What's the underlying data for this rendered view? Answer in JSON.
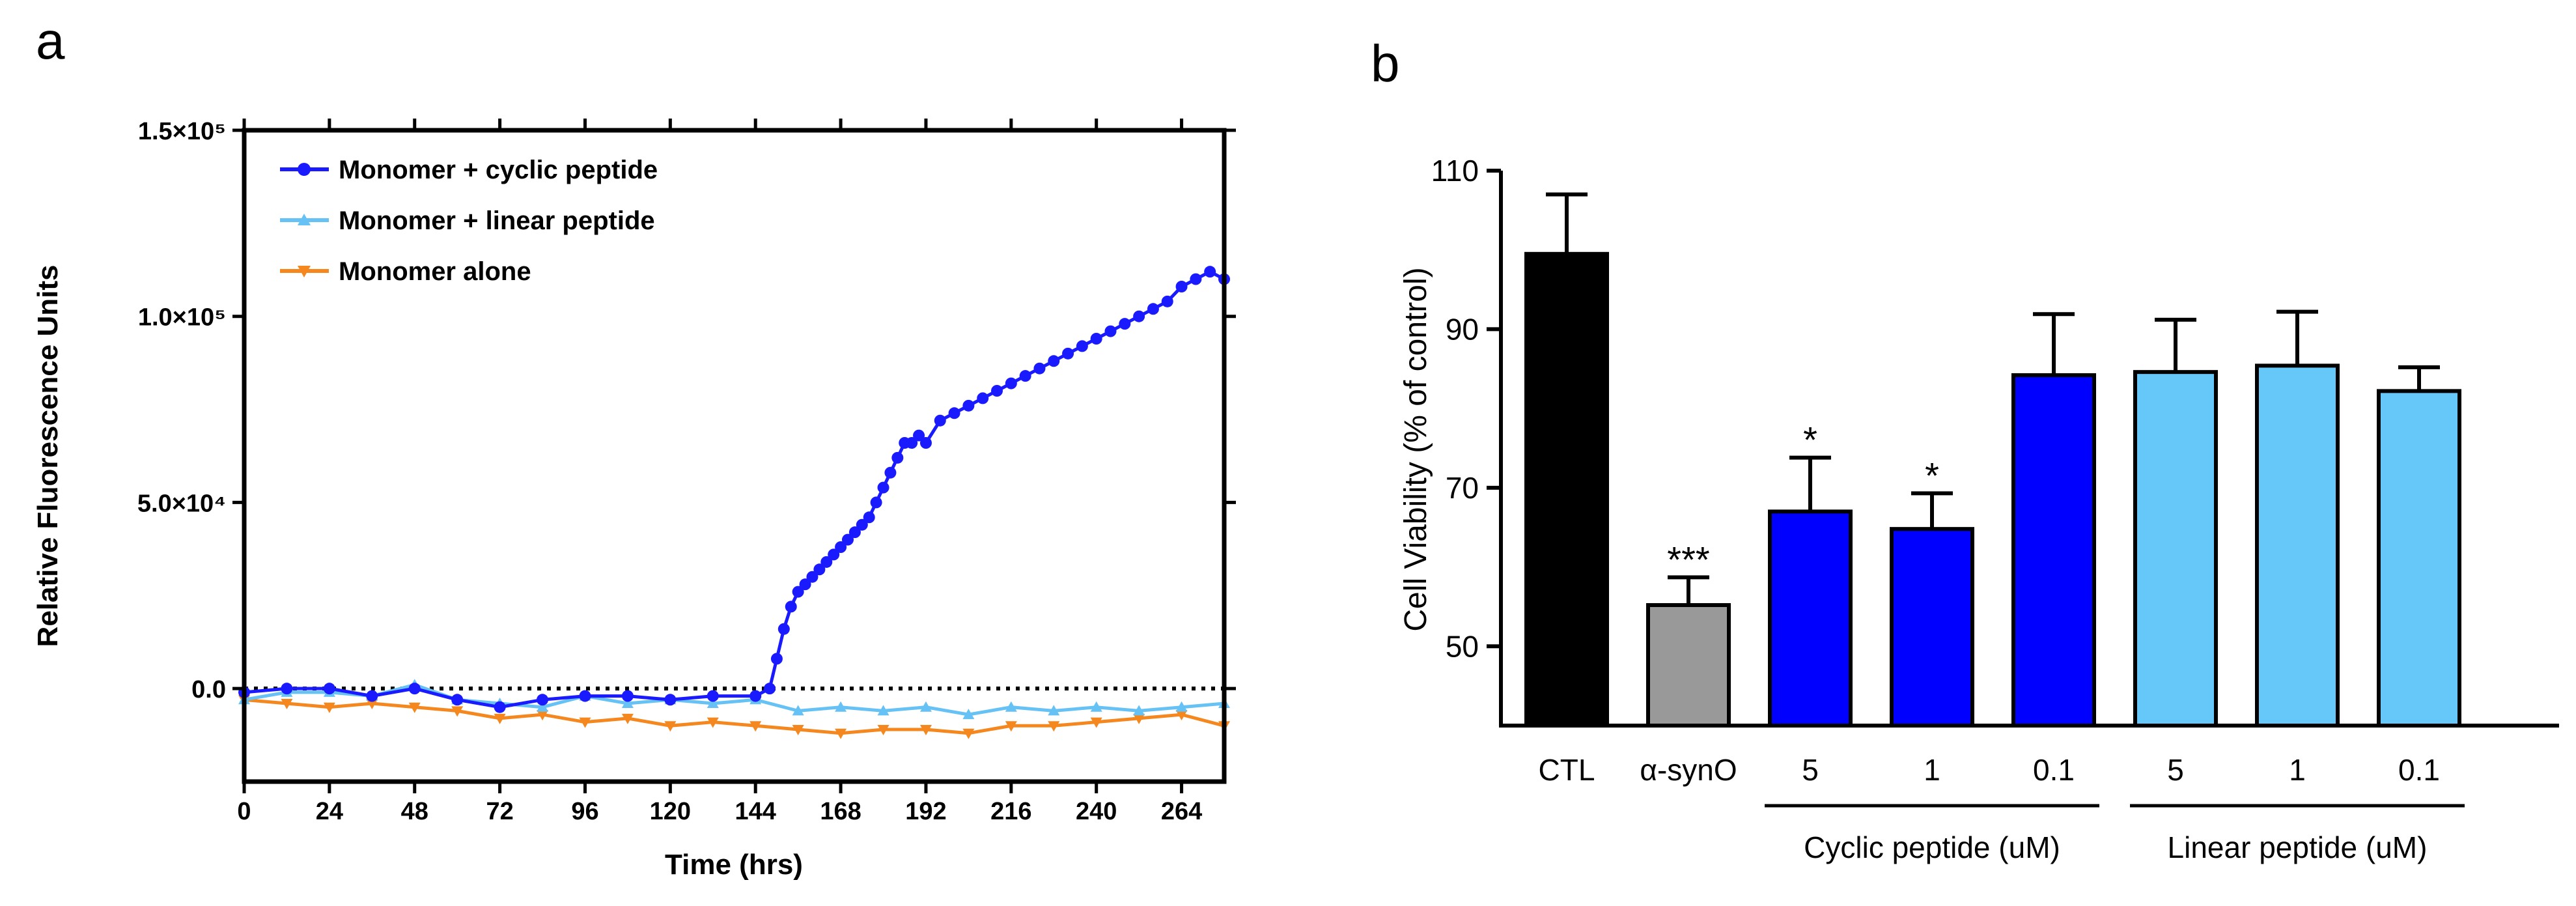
{
  "panels": {
    "a_label": "a",
    "b_label": "b"
  },
  "chart_data": [
    {
      "type": "line",
      "title": "",
      "xlabel": "Time (hrs)",
      "ylabel": "Relative Fluorescence Units",
      "xlim": [
        0,
        276
      ],
      "ylim": [
        -25000,
        150000
      ],
      "x_ticks": [
        0,
        24,
        48,
        72,
        96,
        120,
        144,
        168,
        192,
        216,
        240,
        264
      ],
      "x_tick_labels": [
        "0",
        "24",
        "48",
        "72",
        "96",
        "120",
        "144",
        "168",
        "192",
        "216",
        "240",
        "264"
      ],
      "y_ticks": [
        0,
        50000,
        100000,
        150000
      ],
      "y_tick_labels": [
        "0.0",
        "5.0×10⁴",
        "1.0×10⁵",
        "1.5×10⁵"
      ],
      "zero_line": "dotted",
      "legend_position": "top-left",
      "series": [
        {
          "name": "Monomer + cyclic peptide",
          "color": "#1a1aff",
          "marker": "circle",
          "x": [
            0,
            12,
            24,
            36,
            48,
            60,
            72,
            84,
            96,
            108,
            120,
            132,
            144,
            148,
            150,
            152,
            154,
            156,
            158,
            160,
            162,
            164,
            166,
            168,
            170,
            172,
            174,
            176,
            178,
            180,
            182,
            184,
            186,
            188,
            190,
            192,
            196,
            200,
            204,
            208,
            212,
            216,
            220,
            224,
            228,
            232,
            236,
            240,
            244,
            248,
            252,
            256,
            260,
            264,
            268,
            272,
            276
          ],
          "values": [
            -1000,
            0,
            0,
            -2000,
            0,
            -3000,
            -5000,
            -3000,
            -2000,
            -2000,
            -3000,
            -2000,
            -2000,
            0,
            8000,
            16000,
            22000,
            26000,
            28000,
            30000,
            32000,
            34000,
            36000,
            38000,
            40000,
            42000,
            44000,
            46000,
            50000,
            54000,
            58000,
            62000,
            66000,
            66000,
            68000,
            66000,
            72000,
            74000,
            76000,
            78000,
            80000,
            82000,
            84000,
            86000,
            88000,
            90000,
            92000,
            94000,
            96000,
            98000,
            100000,
            102000,
            104000,
            108000,
            110000,
            112000,
            110000
          ]
        },
        {
          "name": "Monomer + linear peptide",
          "color": "#66c2f5",
          "marker": "triangle",
          "x": [
            0,
            12,
            24,
            36,
            48,
            60,
            72,
            84,
            96,
            108,
            120,
            132,
            144,
            156,
            168,
            180,
            192,
            204,
            216,
            228,
            240,
            252,
            264,
            276
          ],
          "values": [
            -3000,
            -1000,
            -1000,
            -2000,
            1000,
            -3000,
            -4000,
            -5000,
            -2000,
            -4000,
            -3000,
            -4000,
            -3000,
            -6000,
            -5000,
            -6000,
            -5000,
            -7000,
            -5000,
            -6000,
            -5000,
            -6000,
            -5000,
            -4000
          ]
        },
        {
          "name": "Monomer alone",
          "color": "#f5871f",
          "marker": "triangle-down",
          "x": [
            0,
            12,
            24,
            36,
            48,
            60,
            72,
            84,
            96,
            108,
            120,
            132,
            144,
            156,
            168,
            180,
            192,
            204,
            216,
            228,
            240,
            252,
            264,
            276
          ],
          "values": [
            -3000,
            -4000,
            -5000,
            -4000,
            -5000,
            -6000,
            -8000,
            -7000,
            -9000,
            -8000,
            -10000,
            -9000,
            -10000,
            -11000,
            -12000,
            -11000,
            -11000,
            -12000,
            -10000,
            -10000,
            -9000,
            -8000,
            -7000,
            -10000
          ]
        }
      ]
    },
    {
      "type": "bar",
      "title": "",
      "xlabel": "",
      "ylabel": "Cell Viability (% of control)",
      "ylim": [
        40,
        110
      ],
      "y_ticks": [
        50,
        70,
        90,
        110
      ],
      "y_tick_labels": [
        "50",
        "70",
        "90",
        "110"
      ],
      "categories": [
        "CTL",
        "α-synO",
        "5",
        "1",
        "0.1",
        "5",
        "1",
        "0.1"
      ],
      "values": [
        99.5,
        55.2,
        67.0,
        64.8,
        84.2,
        84.6,
        85.4,
        82.2
      ],
      "errors": [
        7.5,
        3.5,
        6.8,
        4.5,
        7.7,
        6.6,
        6.8,
        3.0
      ],
      "colors": [
        "#000000",
        "#999999",
        "#0000ff",
        "#0000ff",
        "#0000ff",
        "#66c8f8",
        "#66c8f8",
        "#66c8f8"
      ],
      "significance": [
        "",
        "***",
        "*",
        "*",
        "",
        "",
        "",
        ""
      ],
      "groups": [
        {
          "label": "Cyclic peptide (uM)",
          "from": 2,
          "to": 4
        },
        {
          "label": "Linear peptide (uM)",
          "from": 5,
          "to": 7
        }
      ]
    }
  ]
}
